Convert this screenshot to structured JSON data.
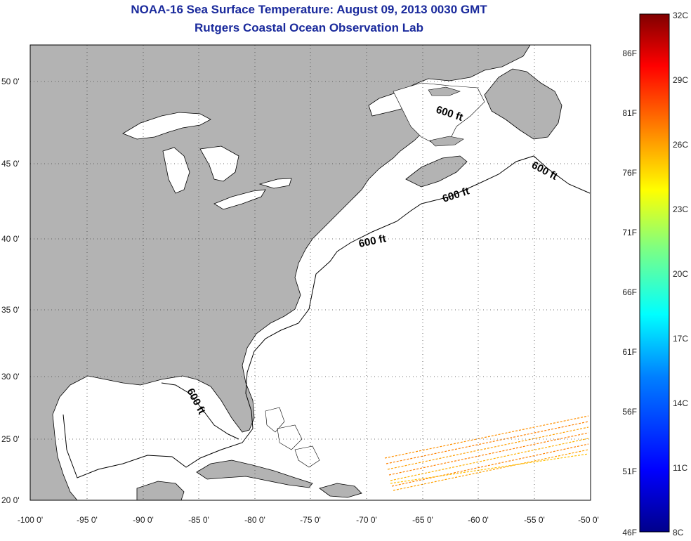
{
  "header": {
    "title_line1": "NOAA-16 Sea Surface Temperature:  August 09, 2013 0030 GMT",
    "title_line2": "Rutgers Coastal Ocean Observation Lab"
  },
  "map": {
    "lon_labels": [
      "-100 0'",
      "-95 0'",
      "-90 0'",
      "-85 0'",
      "-80 0'",
      "-75 0'",
      "-70 0'",
      "-65 0'",
      "-60 0'",
      "-55 0'",
      "-50 0'"
    ],
    "lat_labels": [
      "50 0'",
      "45 0'",
      "40 0'",
      "35 0'",
      "30 0'",
      "25 0'",
      "20 0'"
    ],
    "isobath_label": "600 ft",
    "land_color": "#b3b3b3",
    "ocean_color": "#ffffff"
  },
  "colorbar": {
    "celsius_labels": [
      "32C",
      "29C",
      "26C",
      "23C",
      "20C",
      "17C",
      "14C",
      "11C",
      "8C"
    ],
    "fahrenheit_labels": [
      "86F",
      "81F",
      "76F",
      "71F",
      "66F",
      "61F",
      "56F",
      "51F",
      "46F"
    ],
    "colors": [
      "#800000",
      "#ff0000",
      "#ff8000",
      "#ffff00",
      "#80ff80",
      "#00ffff",
      "#0080ff",
      "#0000ff",
      "#00008b"
    ]
  }
}
